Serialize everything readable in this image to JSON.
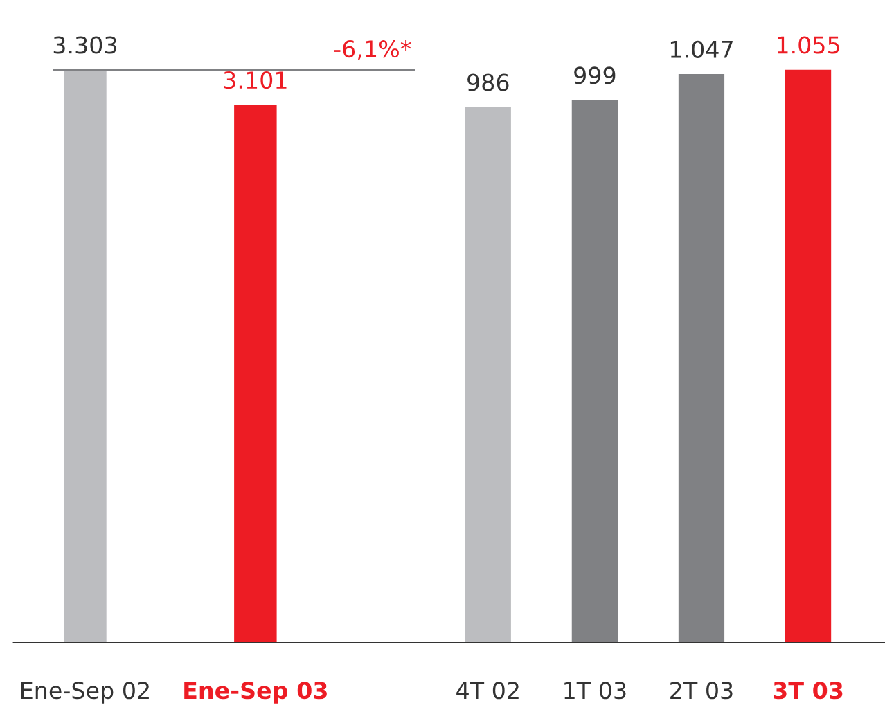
{
  "chart_data": [
    {
      "type": "bar",
      "categories": [
        "Ene-Sep 02",
        "Ene-Sep 03"
      ],
      "values": [
        3303,
        3101
      ],
      "value_labels": [
        "3.303",
        "3.101"
      ],
      "colors": [
        "#bcbdc0",
        "#ed1c24"
      ],
      "tick_labels": "x",
      "grid": false,
      "ref_lines": [
        {
          "axis": "y",
          "value": 3303,
          "color": "#808184"
        }
      ],
      "annotations": [
        "-6,1%*"
      ]
    },
    {
      "type": "bar",
      "categories": [
        "4T 02",
        "1T 03",
        "2T 03",
        "3T 03"
      ],
      "values": [
        986,
        999,
        1047,
        1055
      ],
      "value_labels": [
        "986",
        "999",
        "1.047",
        "1.055"
      ],
      "colors": [
        "#bcbdc0",
        "#808184",
        "#808184",
        "#ed1c24"
      ],
      "tick_labels": "x",
      "grid": false
    }
  ]
}
